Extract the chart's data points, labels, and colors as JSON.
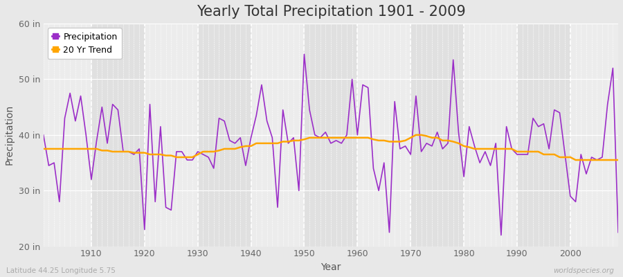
{
  "title": "Yearly Total Precipitation 1901 - 2009",
  "xlabel": "Year",
  "ylabel": "Precipitation",
  "years": [
    1901,
    1902,
    1903,
    1904,
    1905,
    1906,
    1907,
    1908,
    1909,
    1910,
    1911,
    1912,
    1913,
    1914,
    1915,
    1916,
    1917,
    1918,
    1919,
    1920,
    1921,
    1922,
    1923,
    1924,
    1925,
    1926,
    1927,
    1928,
    1929,
    1930,
    1931,
    1932,
    1933,
    1934,
    1935,
    1936,
    1937,
    1938,
    1939,
    1940,
    1941,
    1942,
    1943,
    1944,
    1945,
    1946,
    1947,
    1948,
    1949,
    1950,
    1951,
    1952,
    1953,
    1954,
    1955,
    1956,
    1957,
    1958,
    1959,
    1960,
    1961,
    1962,
    1963,
    1964,
    1965,
    1966,
    1967,
    1968,
    1969,
    1970,
    1971,
    1972,
    1973,
    1974,
    1975,
    1976,
    1977,
    1978,
    1979,
    1980,
    1981,
    1982,
    1983,
    1984,
    1985,
    1986,
    1987,
    1988,
    1989,
    1990,
    1991,
    1992,
    1993,
    1994,
    1995,
    1996,
    1997,
    1998,
    1999,
    2000,
    2001,
    2002,
    2003,
    2004,
    2005,
    2006,
    2007,
    2008,
    2009
  ],
  "precip": [
    40.0,
    34.5,
    35.0,
    28.0,
    43.0,
    47.5,
    42.5,
    47.0,
    40.0,
    32.0,
    39.0,
    45.0,
    38.5,
    45.5,
    44.5,
    37.0,
    37.0,
    36.5,
    37.5,
    23.0,
    45.5,
    28.0,
    41.5,
    27.0,
    26.5,
    37.0,
    37.0,
    35.5,
    35.5,
    37.0,
    36.5,
    36.0,
    34.0,
    43.0,
    42.5,
    39.0,
    38.5,
    39.5,
    34.5,
    39.5,
    43.5,
    49.0,
    42.5,
    39.5,
    27.0,
    44.5,
    38.5,
    39.5,
    30.0,
    54.5,
    44.5,
    40.0,
    39.5,
    40.5,
    38.5,
    39.0,
    38.5,
    40.0,
    50.0,
    40.0,
    49.0,
    48.5,
    34.0,
    30.0,
    35.0,
    22.5,
    46.0,
    37.5,
    38.0,
    36.5,
    47.0,
    37.0,
    38.5,
    38.0,
    40.5,
    37.5,
    38.5,
    53.5,
    40.5,
    32.5,
    41.5,
    38.0,
    35.0,
    37.0,
    34.5,
    38.5,
    22.0,
    41.5,
    37.5,
    36.5,
    36.5,
    36.5,
    43.0,
    41.5,
    42.0,
    37.5,
    44.5,
    44.0,
    36.5,
    29.0,
    28.0,
    36.5,
    33.0,
    36.0,
    35.5,
    36.0,
    45.5,
    52.0,
    22.5
  ],
  "trend": [
    37.5,
    37.5,
    37.5,
    37.5,
    37.5,
    37.5,
    37.5,
    37.5,
    37.5,
    37.5,
    37.5,
    37.2,
    37.2,
    37.0,
    37.0,
    37.0,
    37.0,
    36.8,
    36.8,
    36.8,
    36.5,
    36.5,
    36.5,
    36.3,
    36.3,
    36.0,
    36.0,
    36.0,
    36.0,
    36.5,
    37.0,
    37.0,
    37.0,
    37.2,
    37.5,
    37.5,
    37.5,
    37.8,
    38.0,
    38.0,
    38.5,
    38.5,
    38.5,
    38.5,
    38.5,
    38.8,
    38.8,
    39.0,
    39.0,
    39.2,
    39.5,
    39.5,
    39.5,
    39.5,
    39.5,
    39.5,
    39.5,
    39.5,
    39.5,
    39.5,
    39.5,
    39.5,
    39.2,
    39.0,
    39.0,
    38.8,
    38.8,
    38.8,
    39.0,
    39.5,
    40.0,
    40.0,
    39.8,
    39.5,
    39.5,
    39.0,
    39.0,
    38.8,
    38.5,
    38.0,
    37.8,
    37.5,
    37.5,
    37.5,
    37.5,
    37.5,
    37.5,
    37.5,
    37.5,
    37.0,
    37.0,
    37.0,
    37.0,
    37.0,
    36.5,
    36.5,
    36.5,
    36.0,
    36.0,
    36.0,
    35.5,
    35.5,
    35.5,
    35.5,
    35.5,
    35.5,
    35.5,
    35.5,
    35.5
  ],
  "precip_color": "#9B2EC8",
  "trend_color": "#FFA500",
  "background_color": "#E8E8E8",
  "plot_bg_light": "#ECECEC",
  "plot_bg_dark": "#E0E0E0",
  "grid_color": "#FFFFFF",
  "ylim": [
    20,
    60
  ],
  "yticks": [
    20,
    30,
    40,
    50,
    60
  ],
  "ytick_labels": [
    "20 in",
    "30 in",
    "40 in",
    "50 in",
    "60 in"
  ],
  "decade_starts": [
    1901,
    1910,
    1920,
    1930,
    1940,
    1950,
    1960,
    1970,
    1980,
    1990,
    2000,
    2009
  ],
  "title_fontsize": 15,
  "axis_label_fontsize": 10,
  "tick_fontsize": 9,
  "watermark": "worldspecies.org",
  "coord_label": "Latitude 44.25 Longitude 5.75"
}
